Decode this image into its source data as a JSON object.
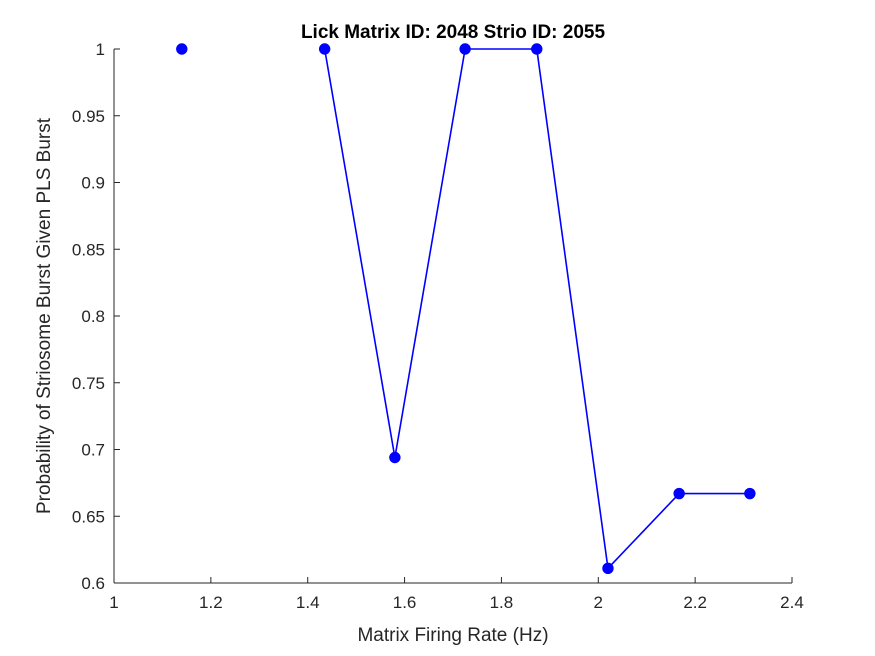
{
  "chart_data": {
    "type": "line",
    "title": "Lick Matrix ID: 2048 Strio ID: 2055",
    "xlabel": "Matrix Firing Rate (Hz)",
    "ylabel": "Probability of Striosome Burst Given PLS Burst",
    "xlim": [
      1,
      2.4
    ],
    "ylim": [
      0.6,
      1
    ],
    "xticks": [
      "1",
      "1.2",
      "1.4",
      "1.6",
      "1.8",
      "2",
      "2.2",
      "2.4"
    ],
    "yticks": [
      "0.6",
      "0.65",
      "0.7",
      "0.75",
      "0.8",
      "0.85",
      "0.9",
      "0.95",
      "1"
    ],
    "grid": false,
    "line_segments": [
      [
        {
          "x": 1.14,
          "y": 1
        }
      ],
      [
        {
          "x": 1.435,
          "y": 1
        },
        {
          "x": 1.58,
          "y": 0.694
        },
        {
          "x": 1.725,
          "y": 1
        },
        {
          "x": 1.873,
          "y": 1
        },
        {
          "x": 2.02,
          "y": 0.611
        },
        {
          "x": 2.167,
          "y": 0.667
        },
        {
          "x": 2.313,
          "y": 0.667
        }
      ]
    ],
    "color": "#0000ff"
  }
}
